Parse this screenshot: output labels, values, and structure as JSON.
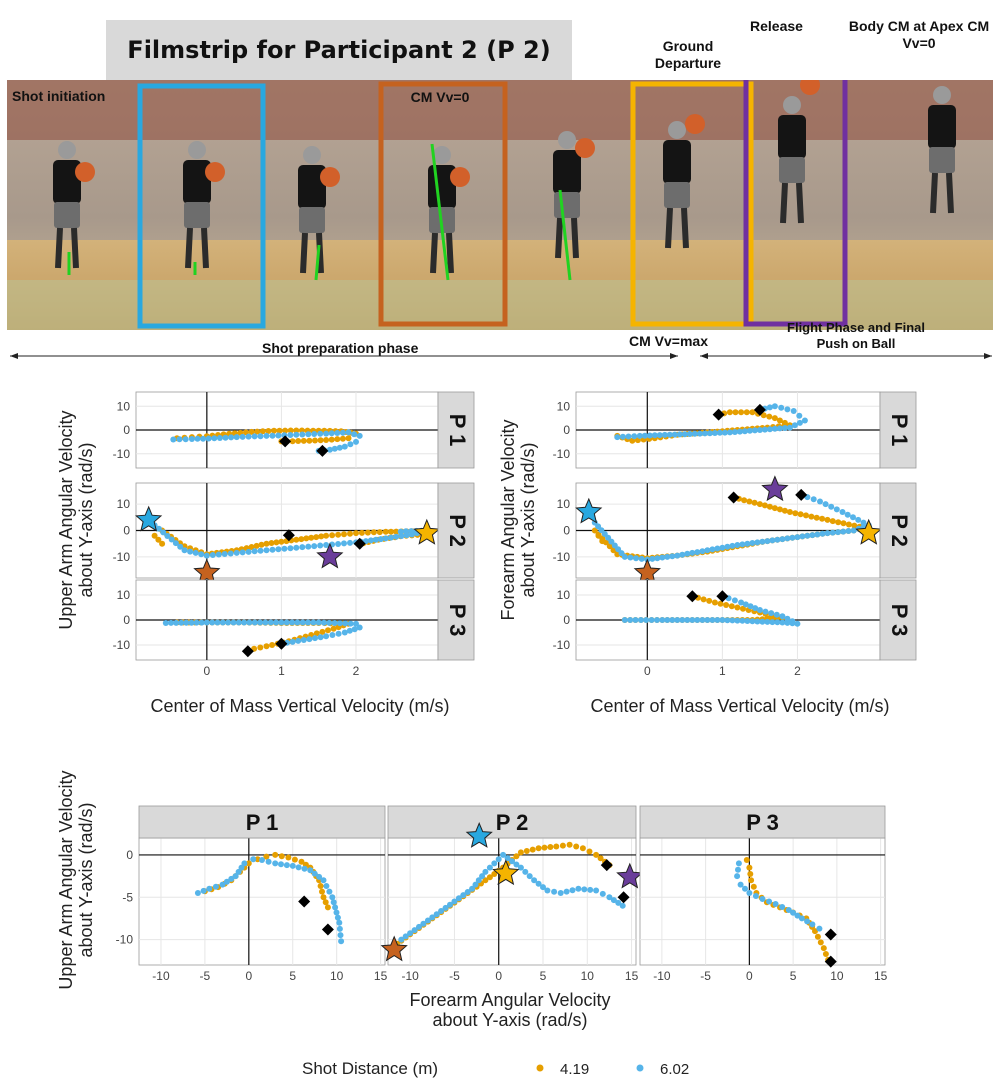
{
  "filmstrip": {
    "title": "Filmstrip for Participant 2 (P 2)",
    "frame_labels": {
      "shot_initiation": "Shot initiation",
      "cm_vv_zero": "CM Vv=0",
      "ground_departure": "Ground Departure",
      "release": "Release",
      "apex": "Body CM at Apex CM Vv=0"
    },
    "phase_labels": {
      "preparation": "Shot preparation phase",
      "cm_vv_max": "CM Vv=max",
      "flight": "Flight Phase and Final Push on Ball"
    },
    "box_colors": {
      "blue": "#29a8e0",
      "orange": "#c5621f",
      "gold": "#f5b400",
      "purple": "#7030a0"
    }
  },
  "colors": {
    "series_419": "#e69f00",
    "series_602": "#56b4e9",
    "marker": "#000000",
    "strip_bg": "#d9d9d9",
    "star_blue": "#29a8e0",
    "star_orange": "#c5621f",
    "star_gold": "#f5b400",
    "star_purple": "#6a3d9a"
  },
  "chart_data": [
    {
      "type": "scatter",
      "ylabel": "Upper Arm Angular Velocity about Y-axis (rad/s)",
      "xlabel": "Center of Mass Vertical Velocity (m/s)",
      "xlim": [
        -0.95,
        3.1
      ],
      "ylim": [
        -16,
        16
      ],
      "xticks": [
        "0",
        "1",
        "2"
      ],
      "yticks": [
        "10",
        "0",
        "-10"
      ],
      "panels": [
        {
          "label": "P 1",
          "series": [
            {
              "name": "4.19",
              "x": [
                -0.4,
                -0.2,
                0.0,
                0.3,
                0.6,
                0.9,
                1.2,
                1.5,
                1.8,
                2.0,
                1.9,
                1.6,
                1.3,
                1.0
              ],
              "y": [
                -3.5,
                -3.0,
                -2.6,
                -1.6,
                -0.8,
                -0.3,
                -0.2,
                -0.3,
                -0.5,
                -1.5,
                -3.5,
                -4.2,
                -4.6,
                -4.8
              ]
            },
            {
              "name": "6.02",
              "x": [
                -0.45,
                -0.2,
                0.1,
                0.4,
                0.8,
                1.2,
                1.6,
                1.9,
                2.05,
                2.0,
                1.85,
                1.65,
                1.5
              ],
              "y": [
                -4.0,
                -3.8,
                -3.5,
                -3.0,
                -2.5,
                -2.0,
                -1.5,
                -1.0,
                -2.5,
                -5.0,
                -7.0,
                -8.3,
                -8.8
              ]
            }
          ],
          "markers": [
            [
              1.05,
              -4.8
            ],
            [
              1.55,
              -8.8
            ]
          ],
          "stars": []
        },
        {
          "label": "P 2",
          "series": [
            {
              "name": "4.19",
              "x": [
                -0.6,
                -0.7,
                -0.6,
                -0.3,
                0.0,
                0.4,
                0.8,
                1.2,
                1.6,
                2.0,
                2.4,
                2.75,
                2.9,
                2.6,
                2.3,
                2.1
              ],
              "y": [
                -5.0,
                -2.0,
                0.0,
                -6.0,
                -9.0,
                -7.5,
                -5.0,
                -3.5,
                -2.0,
                -1.0,
                -0.5,
                -0.3,
                -1.5,
                -2.2,
                -3.5,
                -4.8
              ]
            },
            {
              "name": "6.02",
              "x": [
                -0.7,
                -0.3,
                0.0,
                0.4,
                0.8,
                1.2,
                1.6,
                2.0,
                2.4,
                2.75,
                2.95,
                2.6
              ],
              "y": [
                2.0,
                -7.5,
                -9.5,
                -8.5,
                -7.5,
                -6.5,
                -5.5,
                -4.5,
                -3.0,
                -1.5,
                0.0,
                -0.4
              ]
            }
          ],
          "markers": [
            [
              1.1,
              -1.8
            ],
            [
              2.05,
              -5.0
            ]
          ],
          "stars": [
            {
              "x": -0.78,
              "y": 4.0,
              "color": "star_blue"
            },
            {
              "x": 0.0,
              "y": -16.0,
              "color": "star_orange"
            },
            {
              "x": 1.65,
              "y": -10.0,
              "color": "star_purple"
            },
            {
              "x": 2.95,
              "y": -1.0,
              "color": "star_gold"
            }
          ]
        },
        {
          "label": "P 3",
          "series": [
            {
              "name": "4.19",
              "x": [
                -0.4,
                0.0,
                0.5,
                1.0,
                1.5,
                1.9,
                1.7,
                1.4,
                1.1,
                0.8,
                0.55
              ],
              "y": [
                -1.0,
                -1.0,
                -1.0,
                -1.2,
                -1.2,
                -1.5,
                -3.5,
                -6.0,
                -8.5,
                -10.5,
                -12.0
              ]
            },
            {
              "name": "6.02",
              "x": [
                -0.55,
                0.0,
                0.5,
                1.0,
                1.5,
                2.0,
                2.05,
                1.85,
                1.6,
                1.3,
                1.0
              ],
              "y": [
                -1.2,
                -1.0,
                -1.0,
                -1.0,
                -1.0,
                -1.5,
                -3.0,
                -5.0,
                -6.5,
                -8.0,
                -9.5
              ]
            }
          ],
          "markers": [
            [
              0.55,
              -12.5
            ],
            [
              1.0,
              -9.5
            ]
          ],
          "stars": []
        }
      ]
    },
    {
      "type": "scatter",
      "ylabel": "Forearm Angular Velocity about Y-axis (rad/s)",
      "xlabel": "Center of Mass Vertical Velocity (m/s)",
      "xlim": [
        -0.95,
        3.1
      ],
      "ylim": [
        -16,
        16
      ],
      "xticks": [
        "0",
        "1",
        "2"
      ],
      "yticks": [
        "10",
        "0",
        "-10"
      ],
      "panels": [
        {
          "label": "P 1",
          "series": [
            {
              "name": "4.19",
              "x": [
                -0.4,
                -0.2,
                0.1,
                0.4,
                0.8,
                1.2,
                1.6,
                1.9,
                1.7,
                1.4,
                1.1,
                0.95
              ],
              "y": [
                -2.5,
                -4.5,
                -3.5,
                -2.0,
                -1.0,
                0.0,
                1.0,
                2.0,
                5.0,
                7.5,
                7.5,
                6.5
              ]
            },
            {
              "name": "6.02",
              "x": [
                -0.4,
                -0.1,
                0.3,
                0.7,
                1.1,
                1.5,
                1.9,
                2.1,
                1.95,
                1.7,
                1.5
              ],
              "y": [
                -3.0,
                -2.5,
                -2.0,
                -1.5,
                -1.0,
                0.0,
                1.0,
                4.0,
                8.0,
                10.0,
                8.5
              ]
            }
          ],
          "markers": [
            [
              0.95,
              6.5
            ],
            [
              1.5,
              8.5
            ]
          ],
          "stars": []
        },
        {
          "label": "P 2",
          "series": [
            {
              "name": "4.19",
              "x": [
                -0.6,
                -0.7,
                -0.4,
                0.0,
                0.4,
                0.8,
                1.2,
                1.6,
                2.0,
                2.4,
                2.75,
                2.9,
                2.4,
                1.9,
                1.5,
                1.15
              ],
              "y": [
                -4.0,
                0.0,
                -9.0,
                -10.5,
                -9.5,
                -8.0,
                -6.0,
                -4.0,
                -2.5,
                -1.0,
                0.0,
                1.0,
                4.0,
                7.0,
                10.0,
                12.5
              ]
            },
            {
              "name": "6.02",
              "x": [
                -0.7,
                -0.3,
                0.0,
                0.4,
                0.8,
                1.2,
                1.6,
                2.0,
                2.4,
                2.75,
                2.95,
                2.6,
                2.3,
                2.05
              ],
              "y": [
                3.0,
                -10.0,
                -11.0,
                -9.5,
                -7.5,
                -5.5,
                -4.0,
                -2.5,
                -1.0,
                0.0,
                2.0,
                7.0,
                11.0,
                13.5
              ]
            }
          ],
          "markers": [
            [
              1.15,
              12.5
            ],
            [
              2.05,
              13.5
            ]
          ],
          "stars": [
            {
              "x": -0.78,
              "y": 7.0,
              "color": "star_blue"
            },
            {
              "x": 0.0,
              "y": -16.0,
              "color": "star_orange"
            },
            {
              "x": 1.7,
              "y": 15.5,
              "color": "star_purple"
            },
            {
              "x": 2.95,
              "y": -1.0,
              "color": "star_gold"
            }
          ]
        },
        {
          "label": "P 3",
          "series": [
            {
              "name": "4.19",
              "x": [
                -0.3,
                0.2,
                0.6,
                1.0,
                1.4,
                1.8,
                1.5,
                1.2,
                0.9,
                0.6
              ],
              "y": [
                0.0,
                0.0,
                0.0,
                0.0,
                0.0,
                1.0,
                3.0,
                5.0,
                7.0,
                9.5
              ]
            },
            {
              "name": "6.02",
              "x": [
                -0.3,
                0.2,
                0.6,
                1.0,
                1.4,
                1.8,
                2.0,
                1.8,
                1.5,
                1.25,
                1.0
              ],
              "y": [
                0.0,
                0.0,
                0.0,
                0.0,
                -0.5,
                -1.0,
                -1.5,
                1.5,
                4.0,
                7.0,
                9.5
              ]
            }
          ],
          "markers": [
            [
              0.6,
              9.5
            ],
            [
              1.0,
              9.5
            ]
          ],
          "stars": []
        }
      ]
    },
    {
      "type": "scatter",
      "ylabel": "Upper Arm Angular Velocity about Y-axis (rad/s)",
      "xlabel": "Forearm Angular Velocity about Y-axis (rad/s)",
      "xlim": [
        -12.5,
        15.5
      ],
      "ylim": [
        -13,
        2
      ],
      "xticks": [
        "-10",
        "-5",
        "0",
        "5",
        "10",
        "15"
      ],
      "yticks": [
        "0",
        "-5",
        "-10"
      ],
      "legend_title": "Shot Distance (m)",
      "legend_position": "bottom",
      "panels": [
        {
          "label": "P 1",
          "series": [
            {
              "name": "4.19",
              "x": [
                -5.0,
                -3.5,
                -2.0,
                -1.0,
                0.0,
                1.0,
                2.0,
                3.0,
                4.5,
                6.0,
                7.0,
                8.0,
                8.5,
                9.0
              ],
              "y": [
                -4.3,
                -3.8,
                -3.0,
                -2.0,
                -1.0,
                -0.5,
                -0.2,
                0.0,
                -0.3,
                -0.8,
                -1.5,
                -3.0,
                -5.0,
                -6.2
              ]
            },
            {
              "name": "6.02",
              "x": [
                -5.8,
                -4.5,
                -3.0,
                -1.5,
                -0.5,
                0.5,
                1.5,
                3.0,
                5.0,
                7.0,
                8.5,
                9.5,
                10.3,
                10.5
              ],
              "y": [
                -4.5,
                -4.0,
                -3.5,
                -2.5,
                -1.0,
                -0.5,
                -0.6,
                -1.0,
                -1.3,
                -1.8,
                -3.0,
                -5.0,
                -8.0,
                -10.2
              ]
            }
          ],
          "markers": [
            [
              6.3,
              -5.5
            ],
            [
              9.0,
              -8.8
            ]
          ],
          "stars": []
        },
        {
          "label": "P 2",
          "series": [
            {
              "name": "4.19",
              "x": [
                -11.5,
                -9.5,
                -7.5,
                -5.5,
                -3.5,
                -1.5,
                0.5,
                2.5,
                4.5,
                6.5,
                8.0,
                9.5,
                11.0,
                12.5
              ],
              "y": [
                -10.5,
                -9.0,
                -7.5,
                -6.0,
                -4.5,
                -3.0,
                -1.5,
                0.3,
                0.8,
                1.0,
                1.2,
                0.8,
                0.0,
                -1.2
              ]
            },
            {
              "name": "6.02",
              "x": [
                -11.0,
                -9.0,
                -7.0,
                -5.0,
                -3.0,
                -1.5,
                0.5,
                2.5,
                4.0,
                5.5,
                7.0,
                9.0,
                11.0,
                12.5,
                14.0
              ],
              "y": [
                -10.0,
                -8.5,
                -7.0,
                -5.5,
                -4.0,
                -2.0,
                0.0,
                -1.5,
                -3.0,
                -4.2,
                -4.5,
                -4.0,
                -4.2,
                -5.0,
                -6.0
              ]
            }
          ],
          "markers": [
            [
              12.2,
              -1.2
            ],
            [
              14.1,
              -5.0
            ]
          ],
          "stars": [
            {
              "x": -2.2,
              "y": 2.2,
              "color": "star_blue"
            },
            {
              "x": -11.8,
              "y": -11.2,
              "color": "star_orange"
            },
            {
              "x": 0.8,
              "y": -2.2,
              "color": "star_gold"
            },
            {
              "x": 14.8,
              "y": -2.6,
              "color": "star_purple"
            }
          ]
        },
        {
          "label": "P 3",
          "series": [
            {
              "name": "4.19",
              "x": [
                -0.3,
                0.0,
                0.2,
                0.8,
                2.0,
                3.5,
                5.0,
                6.5,
                7.5,
                8.5,
                9.0
              ],
              "y": [
                -0.6,
                -1.5,
                -3.0,
                -4.5,
                -5.6,
                -6.2,
                -6.8,
                -7.5,
                -9.0,
                -11.0,
                -12.4
              ]
            },
            {
              "name": "6.02",
              "x": [
                -1.2,
                -1.4,
                -1.0,
                0.0,
                1.5,
                3.0,
                4.5,
                6.0,
                7.2,
                8.0
              ],
              "y": [
                -1.0,
                -2.5,
                -3.5,
                -4.5,
                -5.2,
                -5.8,
                -6.5,
                -7.5,
                -8.2,
                -8.7
              ]
            }
          ],
          "markers": [
            [
              9.3,
              -9.4
            ],
            [
              9.3,
              -12.6
            ]
          ],
          "stars": []
        }
      ]
    }
  ],
  "legend": {
    "title": "Shot Distance (m)",
    "items": [
      {
        "label": "4.19",
        "color": "series_419"
      },
      {
        "label": "6.02",
        "color": "series_602"
      }
    ]
  }
}
